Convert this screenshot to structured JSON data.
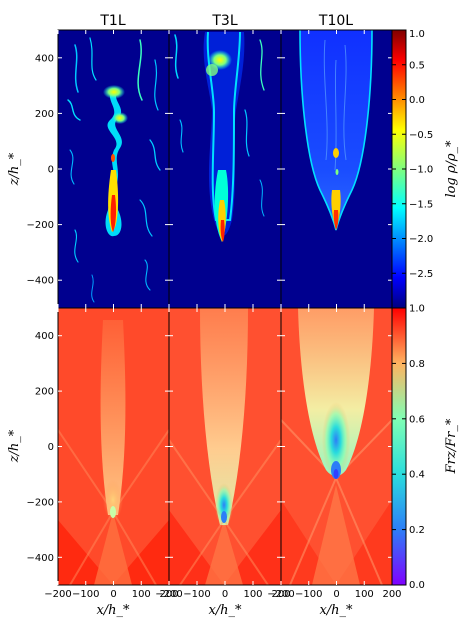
{
  "chart_data": {
    "type": "heatmap",
    "panel_titles": [
      "T1L",
      "T3L",
      "T10L"
    ],
    "xlabel": "x/h_*",
    "ylabel": "z/h_*",
    "xlim": [
      -200,
      200
    ],
    "ylim": [
      -500,
      500
    ],
    "x_ticks": [
      -200,
      -100,
      0,
      100,
      200
    ],
    "x_tick_labels": [
      "−200",
      "−100",
      "0",
      "100",
      "200"
    ],
    "y_ticks": [
      -400,
      -200,
      0,
      200,
      400
    ],
    "y_tick_labels": [
      "−400",
      "−200",
      "0",
      "200",
      "400"
    ],
    "rows": [
      {
        "quantity": "log ρ/ρ_*",
        "colorbar_label": "log ρ/ρ_*",
        "colormap": "jet",
        "range": [
          -3.0,
          1.0
        ],
        "ticks": [
          1.0,
          0.5,
          0.0,
          -0.5,
          -1.0,
          -1.5,
          -2.0,
          -2.5
        ],
        "tick_labels": [
          "1.0",
          "0.5",
          "0.0",
          "−0.5",
          "−1.0",
          "−1.5",
          "−2.0",
          "−2.5"
        ]
      },
      {
        "quantity": "Frz/Fr_*",
        "colorbar_label": "Frz/Fr_*",
        "colormap": "rainbow",
        "range": [
          0.0,
          1.0
        ],
        "ticks": [
          1.0,
          0.8,
          0.6,
          0.4,
          0.2,
          0.0
        ],
        "tick_labels": [
          "1.0",
          "0.8",
          "0.6",
          "0.4",
          "0.2",
          "0.0"
        ]
      }
    ]
  }
}
